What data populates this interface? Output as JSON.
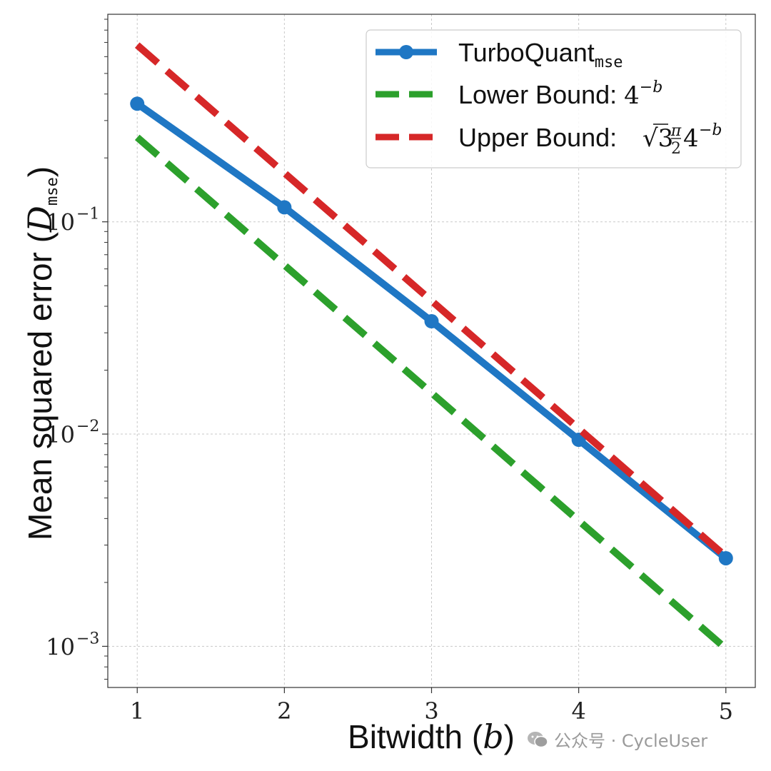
{
  "chart_data": {
    "type": "line",
    "xlabel": "Bitwidth (b)",
    "xlabel_text": "Bitwidth (",
    "xlabel_var": "b",
    "xlabel_close": ")",
    "ylabel_text": "Mean squared error (",
    "ylabel_var": "D",
    "ylabel_sub": "mse",
    "ylabel_close": ")",
    "yscale": "log",
    "xlim": [
      0.8,
      5.2
    ],
    "ylim": [
      0.00064,
      0.95
    ],
    "x_ticks": [
      1,
      2,
      3,
      4,
      5
    ],
    "x_tick_labels": [
      "1",
      "2",
      "3",
      "4",
      "5"
    ],
    "y_ticks": [
      0.1,
      0.01,
      0.001
    ],
    "y_tick_base": "10",
    "y_tick_exps": [
      "−1",
      "−2",
      "−3"
    ],
    "grid": true,
    "legend_position": "top-right",
    "series": [
      {
        "name": "TurboQuant",
        "name_sub": "mse",
        "style": "solid-marker",
        "color": "#1f77c4",
        "x": [
          1,
          2,
          3,
          4,
          5
        ],
        "y": [
          0.36,
          0.117,
          0.034,
          0.0094,
          0.0026
        ]
      },
      {
        "name": "Lower Bound: ",
        "formula_base": "4",
        "formula_exp": "−b",
        "style": "dashed",
        "color": "#2ca02c",
        "x": [
          1,
          5
        ],
        "y": [
          0.25,
          0.0009765625
        ]
      },
      {
        "name": "Upper Bound: ",
        "formula_base": "√3",
        "formula_frac_num": "π",
        "formula_frac_den": "2",
        "formula_four": "4",
        "formula_exp": "−b",
        "style": "dashed",
        "color": "#d62728",
        "x": [
          1,
          5
        ],
        "y": [
          0.68,
          0.00265
        ]
      }
    ]
  },
  "watermark": {
    "text": "公众号 · CycleUser",
    "icon": "wechat-icon"
  }
}
